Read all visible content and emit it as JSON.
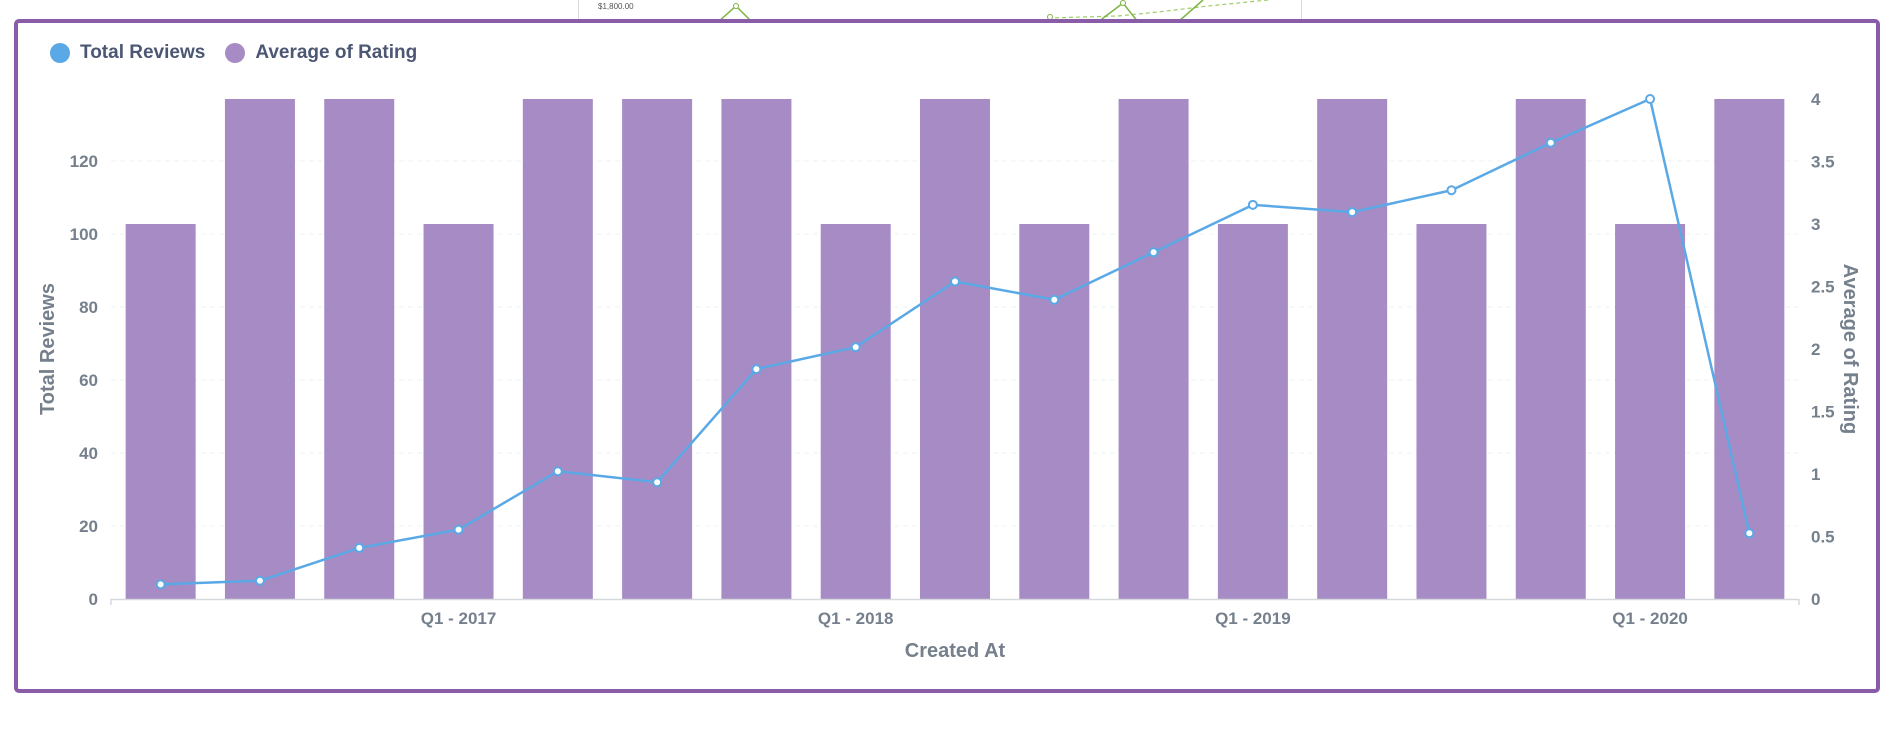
{
  "background_fragment": {
    "tick_label": "$1,800.00"
  },
  "colors": {
    "reviews": "#5aa9e6",
    "rating": "#a78bc4",
    "border": "#8a5ca8"
  },
  "legend": [
    {
      "label": "Total Reviews",
      "color": "#5aa9e6"
    },
    {
      "label": "Average of Rating",
      "color": "#a78bc4"
    }
  ],
  "chart_data": {
    "type": "bar+line",
    "xlabel": "Created At",
    "ylabel_left": "Total Reviews",
    "ylabel_right": "Average of Rating",
    "x_tick_labels": [
      "Q1 - 2017",
      "Q1 - 2018",
      "Q1 - 2019",
      "Q1 - 2020"
    ],
    "x_tick_positions": [
      3,
      7,
      11,
      15
    ],
    "left_axis": {
      "ticks": [
        0,
        20,
        40,
        60,
        80,
        100,
        120
      ],
      "ylim": [
        0,
        137
      ]
    },
    "right_axis": {
      "ticks": [
        "0",
        "0.5",
        "1",
        "1.5",
        "2",
        "2.5",
        "3",
        "3.5",
        "4"
      ],
      "ylim": [
        0,
        4
      ]
    },
    "series": [
      {
        "name": "Average of Rating",
        "type": "bar",
        "axis": "right",
        "values": [
          3,
          4,
          4,
          3,
          4,
          4,
          4,
          3,
          4,
          3,
          4,
          3,
          4,
          3,
          4,
          3,
          4
        ]
      },
      {
        "name": "Total Reviews",
        "type": "line",
        "axis": "left",
        "values": [
          4,
          5,
          14,
          19,
          35,
          32,
          63,
          69,
          87,
          82,
          95,
          108,
          106,
          112,
          125,
          137,
          18
        ]
      }
    ]
  }
}
